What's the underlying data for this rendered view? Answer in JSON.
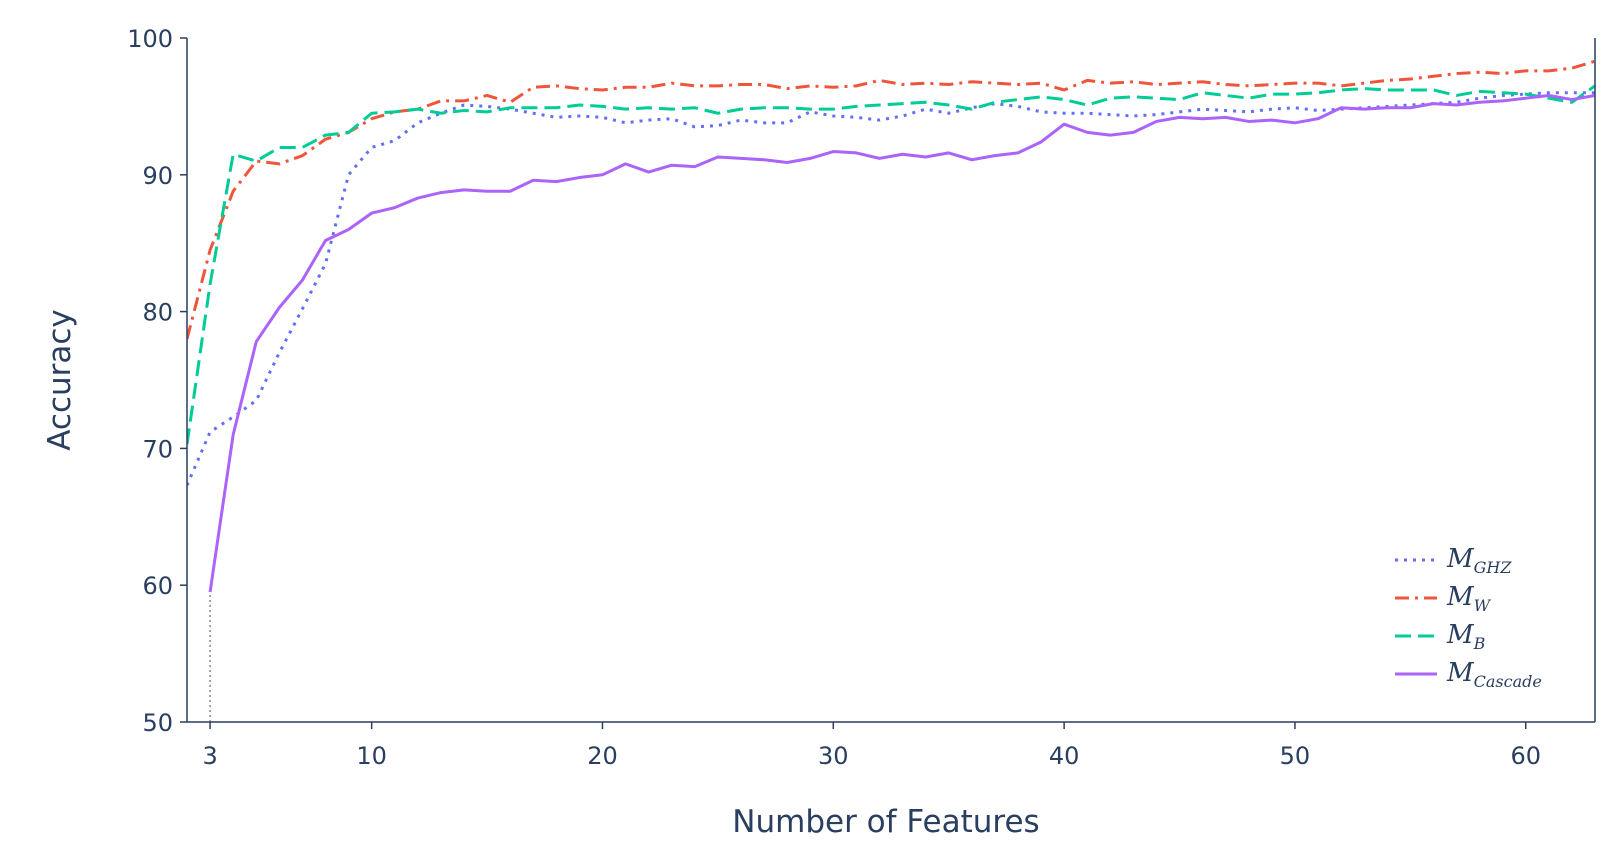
{
  "chart_data": {
    "type": "line",
    "xlabel": "Number of Features",
    "ylabel": "Accuracy",
    "xlim": [
      2,
      63
    ],
    "ylim": [
      50,
      100
    ],
    "x_ticks": [
      {
        "value": 3,
        "label": "3"
      },
      {
        "value": 10,
        "label": "10"
      },
      {
        "value": 20,
        "label": "20"
      },
      {
        "value": 30,
        "label": "30"
      },
      {
        "value": 40,
        "label": "40"
      },
      {
        "value": 50,
        "label": "50"
      },
      {
        "value": 60,
        "label": "60"
      }
    ],
    "y_ticks": [
      {
        "value": 50,
        "label": "50"
      },
      {
        "value": 60,
        "label": "60"
      },
      {
        "value": 70,
        "label": "70"
      },
      {
        "value": 80,
        "label": "80"
      },
      {
        "value": 90,
        "label": "90"
      },
      {
        "value": 100,
        "label": "100"
      }
    ],
    "grid": false,
    "legend_position": "bottom-right",
    "x": [
      2,
      3,
      4,
      5,
      6,
      7,
      8,
      9,
      10,
      11,
      12,
      13,
      14,
      15,
      16,
      17,
      18,
      19,
      20,
      21,
      22,
      23,
      24,
      25,
      26,
      27,
      28,
      29,
      30,
      31,
      32,
      33,
      34,
      35,
      36,
      37,
      38,
      39,
      40,
      41,
      42,
      43,
      44,
      45,
      46,
      47,
      48,
      49,
      50,
      51,
      52,
      53,
      54,
      55,
      56,
      57,
      58,
      59,
      60,
      61,
      62,
      63
    ],
    "series": [
      {
        "key": "ghz",
        "name": "M",
        "sub": "GHZ",
        "color": "#636efa",
        "dash": "3,6",
        "values": [
          67.3,
          71.2,
          72.3,
          73.5,
          77.0,
          80.2,
          83.5,
          90.0,
          92.0,
          92.5,
          93.8,
          94.5,
          95.1,
          95.0,
          94.8,
          94.5,
          94.2,
          94.3,
          94.2,
          93.8,
          94.0,
          94.1,
          93.5,
          93.6,
          94.0,
          93.8,
          93.8,
          94.6,
          94.3,
          94.2,
          94.0,
          94.3,
          94.8,
          94.5,
          94.9,
          95.2,
          95.0,
          94.6,
          94.5,
          94.5,
          94.4,
          94.3,
          94.4,
          94.6,
          94.8,
          94.7,
          94.6,
          94.8,
          94.9,
          94.7,
          94.8,
          94.9,
          95.0,
          95.1,
          95.2,
          95.3,
          95.6,
          95.8,
          95.9,
          96.0,
          96.0,
          96.0
        ]
      },
      {
        "key": "w",
        "name": "M",
        "sub": "W",
        "color": "#ef553b",
        "dash": "14,6,3,6",
        "values": [
          78.0,
          84.5,
          88.8,
          91.0,
          90.8,
          91.4,
          92.6,
          93.1,
          94.1,
          94.6,
          94.8,
          95.4,
          95.4,
          95.8,
          95.3,
          96.4,
          96.5,
          96.3,
          96.2,
          96.4,
          96.4,
          96.7,
          96.5,
          96.5,
          96.6,
          96.6,
          96.3,
          96.5,
          96.4,
          96.5,
          96.9,
          96.6,
          96.7,
          96.6,
          96.8,
          96.7,
          96.6,
          96.7,
          96.2,
          96.9,
          96.7,
          96.8,
          96.6,
          96.7,
          96.8,
          96.6,
          96.5,
          96.6,
          96.7,
          96.7,
          96.5,
          96.7,
          96.9,
          97.0,
          97.2,
          97.4,
          97.5,
          97.4,
          97.6,
          97.6,
          97.8,
          98.3
        ]
      },
      {
        "key": "b",
        "name": "M",
        "sub": "B",
        "color": "#00cc96",
        "dash": "16,7",
        "values": [
          70.3,
          82.0,
          91.5,
          91.0,
          92.0,
          92.0,
          92.9,
          93.1,
          94.5,
          94.6,
          94.8,
          94.5,
          94.7,
          94.6,
          94.9,
          94.9,
          94.9,
          95.1,
          95.0,
          94.8,
          94.9,
          94.8,
          94.9,
          94.5,
          94.8,
          94.9,
          94.9,
          94.8,
          94.8,
          95.0,
          95.1,
          95.2,
          95.3,
          95.1,
          94.8,
          95.3,
          95.5,
          95.7,
          95.5,
          95.1,
          95.6,
          95.7,
          95.6,
          95.5,
          96.0,
          95.8,
          95.6,
          95.9,
          95.9,
          96.0,
          96.2,
          96.3,
          96.2,
          96.2,
          96.2,
          95.8,
          96.1,
          96.0,
          95.9,
          95.6,
          95.3,
          96.5
        ]
      },
      {
        "key": "cascade",
        "name": "M",
        "sub": "Cascade",
        "color": "#ab63fa",
        "dash": "",
        "values": [
          null,
          59.5,
          71.0,
          77.8,
          80.3,
          82.3,
          85.2,
          86.0,
          87.2,
          87.6,
          88.3,
          88.7,
          88.9,
          88.8,
          88.8,
          89.6,
          89.5,
          89.8,
          90.0,
          90.8,
          90.2,
          90.7,
          90.6,
          91.3,
          91.2,
          91.1,
          90.9,
          91.2,
          91.7,
          91.6,
          91.2,
          91.5,
          91.3,
          91.6,
          91.1,
          91.4,
          91.6,
          92.4,
          93.7,
          93.1,
          92.9,
          93.1,
          93.9,
          94.2,
          94.1,
          94.2,
          93.9,
          94.0,
          93.8,
          94.1,
          94.9,
          94.8,
          94.9,
          94.9,
          95.2,
          95.1,
          95.3,
          95.4,
          95.6,
          95.8,
          95.5,
          95.8
        ]
      }
    ],
    "reference_line": {
      "x": 3,
      "from": 50,
      "to": 59.5,
      "color": "#888888"
    }
  }
}
